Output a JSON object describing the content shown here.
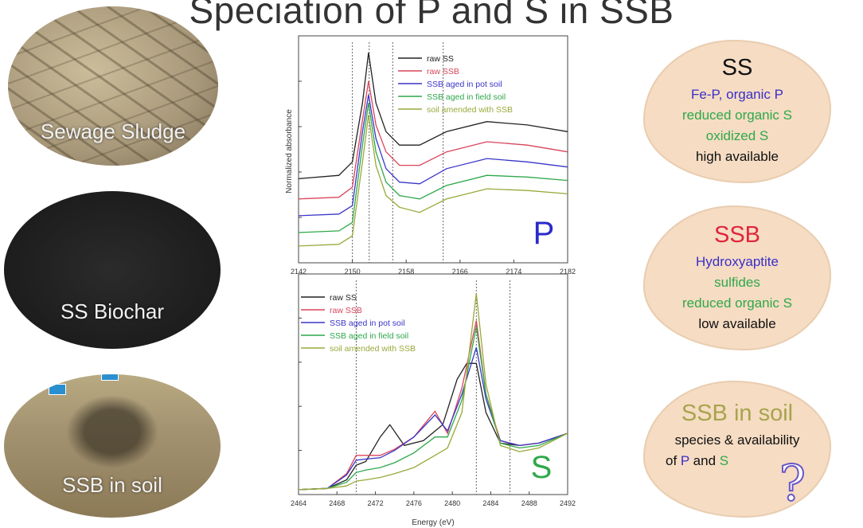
{
  "title": "Speciation of P and S in SSB",
  "photos": {
    "sewage_sludge": "Sewage Sludge",
    "ss_biochar": "SS Biochar",
    "ssb_in_soil": "SSB in soil"
  },
  "legend": [
    {
      "label": "raw SS",
      "color": "#222222"
    },
    {
      "label": "raw SSB",
      "color": "#d9455a"
    },
    {
      "label": "SSB aged in pot soil",
      "color": "#3a35c8"
    },
    {
      "label": "SSB aged in field soil",
      "color": "#2fa84a"
    },
    {
      "label": "soil amended with SSB",
      "color": "#9aa83a"
    }
  ],
  "chart_data": [
    {
      "type": "line",
      "element_label": "P",
      "ylabel": "Normalized absorbance",
      "xlim": [
        2142,
        2182
      ],
      "xticks": [
        "2142",
        "2150",
        "2158",
        "2166",
        "2174",
        "2182"
      ],
      "reference_lines": [
        2150,
        2152.5,
        2156,
        2163.5
      ],
      "series": [
        {
          "name": "raw SS",
          "x": [
            2142,
            2148,
            2150,
            2151.5,
            2152.4,
            2153.5,
            2155,
            2157,
            2160,
            2164,
            2170,
            2176,
            2182
          ],
          "y": [
            0.5,
            0.52,
            0.6,
            0.95,
            1.25,
            0.95,
            0.78,
            0.7,
            0.7,
            0.78,
            0.84,
            0.82,
            0.78
          ]
        },
        {
          "name": "raw SSB",
          "x": [
            2142,
            2148,
            2150,
            2151.5,
            2152.4,
            2153.5,
            2155,
            2157,
            2160,
            2164,
            2170,
            2176,
            2182
          ],
          "y": [
            0.38,
            0.39,
            0.45,
            0.85,
            1.08,
            0.82,
            0.66,
            0.58,
            0.58,
            0.66,
            0.72,
            0.7,
            0.66
          ]
        },
        {
          "name": "SSB aged in pot soil",
          "x": [
            2142,
            2148,
            2150,
            2151.5,
            2152.4,
            2153.5,
            2155,
            2157,
            2160,
            2164,
            2170,
            2176,
            2182
          ],
          "y": [
            0.28,
            0.29,
            0.34,
            0.78,
            1.0,
            0.74,
            0.56,
            0.48,
            0.47,
            0.56,
            0.62,
            0.6,
            0.57
          ]
        },
        {
          "name": "SSB aged in field soil",
          "x": [
            2142,
            2148,
            2150,
            2151.5,
            2152.4,
            2153.5,
            2155,
            2157,
            2160,
            2164,
            2170,
            2176,
            2182
          ],
          "y": [
            0.18,
            0.19,
            0.24,
            0.7,
            0.95,
            0.66,
            0.48,
            0.4,
            0.38,
            0.46,
            0.52,
            0.51,
            0.49
          ]
        },
        {
          "name": "soil amended with SSB",
          "x": [
            2142,
            2148,
            2150,
            2151.5,
            2152.4,
            2153.5,
            2155,
            2157,
            2160,
            2164,
            2170,
            2176,
            2182
          ],
          "y": [
            0.1,
            0.11,
            0.16,
            0.6,
            0.88,
            0.58,
            0.4,
            0.33,
            0.3,
            0.38,
            0.44,
            0.43,
            0.41
          ]
        }
      ]
    },
    {
      "type": "line",
      "element_label": "S",
      "xlabel": "Energy (eV)",
      "xlim": [
        2464,
        2492
      ],
      "xticks": [
        "2464",
        "2468",
        "2472",
        "2476",
        "2480",
        "2484",
        "2488",
        "2492"
      ],
      "reference_lines": [
        2470,
        2482.5,
        2486
      ],
      "series": [
        {
          "name": "raw SS",
          "x": [
            2464,
            2467,
            2469,
            2470,
            2471,
            2472.5,
            2473.5,
            2475,
            2477,
            2479,
            2480.5,
            2481.5,
            2482.5,
            2483.5,
            2485,
            2487,
            2489,
            2492
          ],
          "y": [
            0.02,
            0.03,
            0.1,
            0.22,
            0.25,
            0.45,
            0.55,
            0.38,
            0.42,
            0.55,
            0.92,
            1.05,
            1.05,
            0.65,
            0.4,
            0.38,
            0.4,
            0.48
          ]
        },
        {
          "name": "raw SSB",
          "x": [
            2464,
            2467,
            2469,
            2470,
            2471,
            2472.5,
            2474,
            2476,
            2478.2,
            2479.5,
            2481,
            2482.5,
            2483.5,
            2485,
            2487,
            2489,
            2492
          ],
          "y": [
            0.02,
            0.03,
            0.15,
            0.3,
            0.3,
            0.3,
            0.35,
            0.45,
            0.66,
            0.48,
            0.85,
            1.4,
            0.8,
            0.42,
            0.38,
            0.4,
            0.48
          ]
        },
        {
          "name": "SSB aged in pot soil",
          "x": [
            2464,
            2467,
            2469,
            2470,
            2471,
            2472.5,
            2474,
            2476,
            2478.2,
            2479.5,
            2481,
            2482.5,
            2483.5,
            2485,
            2487,
            2489,
            2492
          ],
          "y": [
            0.02,
            0.03,
            0.14,
            0.26,
            0.27,
            0.28,
            0.34,
            0.45,
            0.63,
            0.5,
            0.8,
            1.18,
            0.76,
            0.42,
            0.38,
            0.4,
            0.48
          ]
        },
        {
          "name": "SSB aged in field soil",
          "x": [
            2464,
            2467,
            2469,
            2470,
            2471,
            2472.5,
            2474,
            2476,
            2478.2,
            2479.5,
            2481,
            2482.5,
            2483.5,
            2485,
            2487,
            2489,
            2492
          ],
          "y": [
            0.02,
            0.03,
            0.08,
            0.16,
            0.18,
            0.2,
            0.24,
            0.32,
            0.45,
            0.45,
            0.75,
            1.35,
            0.8,
            0.4,
            0.36,
            0.38,
            0.48
          ]
        },
        {
          "name": "soil amended with SSB",
          "x": [
            2464,
            2467,
            2469,
            2470,
            2471,
            2472.5,
            2474,
            2476,
            2478.2,
            2479.5,
            2481,
            2482.5,
            2483.5,
            2485,
            2487,
            2489,
            2492
          ],
          "y": [
            0.02,
            0.03,
            0.05,
            0.09,
            0.1,
            0.12,
            0.15,
            0.2,
            0.3,
            0.36,
            0.65,
            1.62,
            0.88,
            0.38,
            0.33,
            0.36,
            0.48
          ]
        }
      ]
    }
  ],
  "clouds": [
    {
      "title": "SS",
      "title_color": "#111111",
      "lines": [
        {
          "text": "Fe-P, organic P",
          "color": "#3a2fc8"
        },
        {
          "text": "reduced organic S",
          "color": "#2fa84a"
        },
        {
          "text": "oxidized S",
          "color": "#2fa84a"
        },
        {
          "text": "high available",
          "color": "#111111"
        }
      ]
    },
    {
      "title": "SSB",
      "title_color": "#e0253c",
      "lines": [
        {
          "text": "Hydroxyaptite",
          "color": "#3a2fc8"
        },
        {
          "text": "sulfides",
          "color": "#2fa84a"
        },
        {
          "text": "reduced organic S",
          "color": "#2fa84a"
        },
        {
          "text": "low available",
          "color": "#111111"
        }
      ]
    },
    {
      "title": "SSB in soil",
      "title_color": "#a8a44c",
      "line1": "species & availability",
      "line2_pre": "of ",
      "line2_p": "P",
      "line2_mid": " and ",
      "line2_s": "S"
    }
  ]
}
